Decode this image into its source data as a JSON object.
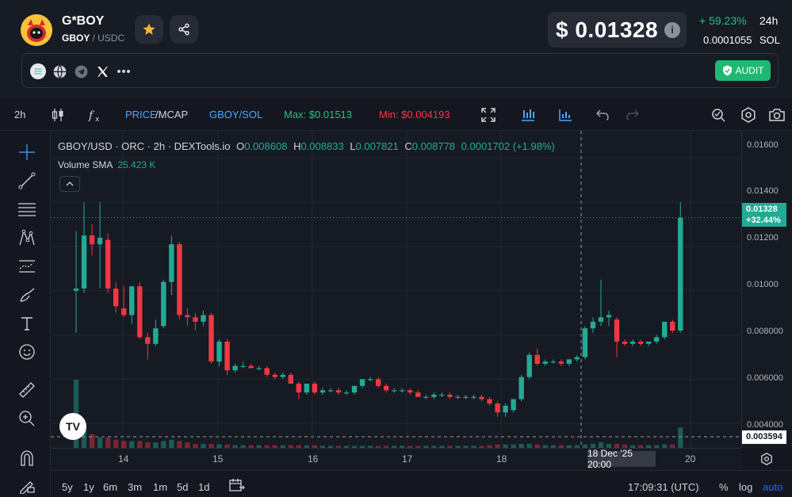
{
  "token": {
    "name": "G*BOY",
    "base": "GBOY",
    "quote": "/ USDC"
  },
  "price": {
    "usd": "$ 0.01328",
    "change": "+ 59.23%",
    "period": "24h",
    "sol_value": "0.0001055",
    "sol_unit": "SOL"
  },
  "audit_label": "AUDIT",
  "toolbar": {
    "interval": "2h",
    "price_label": "PRICE",
    "mcap_label": "/MCAP",
    "pair_label": "GBOY/SOL",
    "max_label": "Max: $0.01513",
    "min_label": "Min: $0.004193"
  },
  "legend": {
    "title": "GBOY/USD · ORC · 2h · DEXTools.io",
    "o_k": "O",
    "o_v": "0.008608",
    "h_k": "H",
    "h_v": "0.008833",
    "l_k": "L",
    "l_v": "0.007821",
    "c_k": "C",
    "c_v": "0.008778",
    "chg_v": "0.0001702 (+1.98%)",
    "volume_label": "Volume SMA",
    "volume_value": "25.423 K"
  },
  "y_axis": {
    "ticks": [
      "0.01600",
      "0.01400",
      "0.01200",
      "0.01000",
      "0.008000",
      "0.006000",
      "0.004000"
    ],
    "price_tag_value": "0.01328",
    "price_tag_change": "+32.44%",
    "crosshair_value": "0.003594"
  },
  "x_axis": {
    "ticks": [
      "14",
      "15",
      "16",
      "17",
      "18",
      "20"
    ],
    "crosshair_label": "18 Dec '25   20:00"
  },
  "bottom": {
    "ranges": [
      "5y",
      "1y",
      "6m",
      "3m",
      "1m",
      "5d",
      "1d"
    ],
    "time": "17:09:31 (UTC)",
    "percent": "%",
    "log": "log",
    "auto": "auto"
  },
  "tv_logo_text": "TV",
  "colors": {
    "up": "#22ab94",
    "down": "#f23645",
    "accent": "#2962ff",
    "audit": "#1fb872"
  },
  "chart_data": {
    "type": "candlestick",
    "title": "GBOY/USD · ORC · 2h · DEXTools.io",
    "ylim": [
      0.0034,
      0.0168
    ],
    "x_ticks": [
      "14",
      "15",
      "16",
      "17",
      "18",
      "20"
    ],
    "candles": [
      {
        "o": 0.01,
        "h": 0.0127,
        "l": 0.0081,
        "c": 0.0101
      },
      {
        "o": 0.0101,
        "h": 0.014,
        "l": 0.0099,
        "c": 0.0125
      },
      {
        "o": 0.0125,
        "h": 0.013,
        "l": 0.0116,
        "c": 0.0121
      },
      {
        "o": 0.0121,
        "h": 0.014,
        "l": 0.0101,
        "c": 0.0124
      },
      {
        "o": 0.0123,
        "h": 0.0126,
        "l": 0.0099,
        "c": 0.0101
      },
      {
        "o": 0.0101,
        "h": 0.0104,
        "l": 0.009,
        "c": 0.0093
      },
      {
        "o": 0.0092,
        "h": 0.0102,
        "l": 0.0088,
        "c": 0.0089
      },
      {
        "o": 0.0089,
        "h": 0.0102,
        "l": 0.0085,
        "c": 0.0102
      },
      {
        "o": 0.0102,
        "h": 0.0104,
        "l": 0.0078,
        "c": 0.0079
      },
      {
        "o": 0.0079,
        "h": 0.0081,
        "l": 0.0069,
        "c": 0.0076
      },
      {
        "o": 0.0076,
        "h": 0.0087,
        "l": 0.0075,
        "c": 0.0083
      },
      {
        "o": 0.0084,
        "h": 0.0105,
        "l": 0.0083,
        "c": 0.0104
      },
      {
        "o": 0.0104,
        "h": 0.0125,
        "l": 0.0098,
        "c": 0.0121
      },
      {
        "o": 0.0121,
        "h": 0.0122,
        "l": 0.0087,
        "c": 0.0089
      },
      {
        "o": 0.0089,
        "h": 0.0092,
        "l": 0.0084,
        "c": 0.0088
      },
      {
        "o": 0.0088,
        "h": 0.009,
        "l": 0.0082,
        "c": 0.0086
      },
      {
        "o": 0.0086,
        "h": 0.0091,
        "l": 0.0084,
        "c": 0.0089
      },
      {
        "o": 0.0089,
        "h": 0.009,
        "l": 0.0067,
        "c": 0.0068
      },
      {
        "o": 0.0068,
        "h": 0.0078,
        "l": 0.0066,
        "c": 0.0077
      },
      {
        "o": 0.0077,
        "h": 0.0078,
        "l": 0.0062,
        "c": 0.0064
      },
      {
        "o": 0.0064,
        "h": 0.0067,
        "l": 0.0063,
        "c": 0.0066
      },
      {
        "o": 0.0066,
        "h": 0.0068,
        "l": 0.0065,
        "c": 0.0066
      },
      {
        "o": 0.0066,
        "h": 0.0067,
        "l": 0.0065,
        "c": 0.0065
      },
      {
        "o": 0.0065,
        "h": 0.0066,
        "l": 0.0064,
        "c": 0.0065
      },
      {
        "o": 0.0065,
        "h": 0.0066,
        "l": 0.0061,
        "c": 0.0062
      },
      {
        "o": 0.0062,
        "h": 0.0063,
        "l": 0.006,
        "c": 0.0061
      },
      {
        "o": 0.0061,
        "h": 0.0063,
        "l": 0.006,
        "c": 0.0062
      },
      {
        "o": 0.0062,
        "h": 0.0063,
        "l": 0.0058,
        "c": 0.0058
      },
      {
        "o": 0.0058,
        "h": 0.0059,
        "l": 0.0051,
        "c": 0.0054
      },
      {
        "o": 0.0054,
        "h": 0.0058,
        "l": 0.0053,
        "c": 0.0058
      },
      {
        "o": 0.0058,
        "h": 0.0059,
        "l": 0.0053,
        "c": 0.0054
      },
      {
        "o": 0.0054,
        "h": 0.0056,
        "l": 0.0053,
        "c": 0.0055
      },
      {
        "o": 0.0055,
        "h": 0.0056,
        "l": 0.0054,
        "c": 0.0055
      },
      {
        "o": 0.0055,
        "h": 0.0056,
        "l": 0.0053,
        "c": 0.0054
      },
      {
        "o": 0.0054,
        "h": 0.0055,
        "l": 0.0053,
        "c": 0.0054
      },
      {
        "o": 0.0054,
        "h": 0.0057,
        "l": 0.0053,
        "c": 0.0057
      },
      {
        "o": 0.0057,
        "h": 0.006,
        "l": 0.0056,
        "c": 0.006
      },
      {
        "o": 0.006,
        "h": 0.0061,
        "l": 0.0059,
        "c": 0.006
      },
      {
        "o": 0.006,
        "h": 0.0061,
        "l": 0.0056,
        "c": 0.0057
      },
      {
        "o": 0.0057,
        "h": 0.0058,
        "l": 0.0054,
        "c": 0.0055
      },
      {
        "o": 0.0055,
        "h": 0.0056,
        "l": 0.0054,
        "c": 0.0055
      },
      {
        "o": 0.0055,
        "h": 0.0056,
        "l": 0.0054,
        "c": 0.0055
      },
      {
        "o": 0.0055,
        "h": 0.0056,
        "l": 0.0053,
        "c": 0.0054
      },
      {
        "o": 0.0054,
        "h": 0.0055,
        "l": 0.0052,
        "c": 0.0052
      },
      {
        "o": 0.0052,
        "h": 0.0053,
        "l": 0.0051,
        "c": 0.0052
      },
      {
        "o": 0.0052,
        "h": 0.0054,
        "l": 0.0051,
        "c": 0.0053
      },
      {
        "o": 0.0053,
        "h": 0.0054,
        "l": 0.0052,
        "c": 0.0053
      },
      {
        "o": 0.0053,
        "h": 0.0054,
        "l": 0.0051,
        "c": 0.0052
      },
      {
        "o": 0.0052,
        "h": 0.0053,
        "l": 0.0051,
        "c": 0.0052
      },
      {
        "o": 0.0052,
        "h": 0.0053,
        "l": 0.0051,
        "c": 0.0052
      },
      {
        "o": 0.0052,
        "h": 0.0053,
        "l": 0.0051,
        "c": 0.0052
      },
      {
        "o": 0.0052,
        "h": 0.0053,
        "l": 0.005,
        "c": 0.0051
      },
      {
        "o": 0.0051,
        "h": 0.0052,
        "l": 0.0048,
        "c": 0.0049
      },
      {
        "o": 0.0049,
        "h": 0.005,
        "l": 0.0043,
        "c": 0.0045
      },
      {
        "o": 0.0045,
        "h": 0.0049,
        "l": 0.0043,
        "c": 0.0048
      },
      {
        "o": 0.0046,
        "h": 0.0051,
        "l": 0.0045,
        "c": 0.0051
      },
      {
        "o": 0.0051,
        "h": 0.0062,
        "l": 0.005,
        "c": 0.0061
      },
      {
        "o": 0.0061,
        "h": 0.0072,
        "l": 0.006,
        "c": 0.0071
      },
      {
        "o": 0.0071,
        "h": 0.0074,
        "l": 0.0066,
        "c": 0.0067
      },
      {
        "o": 0.0067,
        "h": 0.0069,
        "l": 0.0066,
        "c": 0.0068
      },
      {
        "o": 0.0068,
        "h": 0.0069,
        "l": 0.0067,
        "c": 0.0068
      },
      {
        "o": 0.0068,
        "h": 0.0069,
        "l": 0.0066,
        "c": 0.0067
      },
      {
        "o": 0.0067,
        "h": 0.0069,
        "l": 0.0066,
        "c": 0.0069
      },
      {
        "o": 0.0069,
        "h": 0.0071,
        "l": 0.0068,
        "c": 0.007
      },
      {
        "o": 0.007,
        "h": 0.0084,
        "l": 0.0069,
        "c": 0.0083
      },
      {
        "o": 0.0083,
        "h": 0.0088,
        "l": 0.0081,
        "c": 0.0086
      },
      {
        "o": 0.0086,
        "h": 0.0105,
        "l": 0.0084,
        "c": 0.0088
      },
      {
        "o": 0.0088,
        "h": 0.0091,
        "l": 0.0084,
        "c": 0.0089
      },
      {
        "o": 0.0087,
        "h": 0.0088,
        "l": 0.007,
        "c": 0.0077
      },
      {
        "o": 0.0077,
        "h": 0.0078,
        "l": 0.0075,
        "c": 0.0076
      },
      {
        "o": 0.0076,
        "h": 0.0078,
        "l": 0.0075,
        "c": 0.0077
      },
      {
        "o": 0.0077,
        "h": 0.0078,
        "l": 0.0075,
        "c": 0.0076
      },
      {
        "o": 0.0076,
        "h": 0.0077,
        "l": 0.0075,
        "c": 0.0077
      },
      {
        "o": 0.0077,
        "h": 0.008,
        "l": 0.0076,
        "c": 0.0079
      },
      {
        "o": 0.0079,
        "h": 0.0086,
        "l": 0.0078,
        "c": 0.0086
      },
      {
        "o": 0.0086,
        "h": 0.0087,
        "l": 0.0081,
        "c": 0.0082
      },
      {
        "o": 0.0082,
        "h": 0.014,
        "l": 0.0081,
        "c": 0.0133
      }
    ],
    "volume": [
      1.0,
      0.3,
      0.2,
      0.15,
      0.15,
      0.12,
      0.1,
      0.1,
      0.1,
      0.08,
      0.08,
      0.1,
      0.12,
      0.1,
      0.08,
      0.06,
      0.06,
      0.06,
      0.05,
      0.05,
      0.04,
      0.04,
      0.04,
      0.04,
      0.04,
      0.04,
      0.04,
      0.04,
      0.04,
      0.04,
      0.04,
      0.03,
      0.03,
      0.03,
      0.03,
      0.03,
      0.03,
      0.03,
      0.03,
      0.03,
      0.03,
      0.03,
      0.03,
      0.03,
      0.03,
      0.03,
      0.03,
      0.03,
      0.03,
      0.03,
      0.03,
      0.03,
      0.04,
      0.05,
      0.05,
      0.05,
      0.06,
      0.06,
      0.05,
      0.04,
      0.04,
      0.04,
      0.04,
      0.04,
      0.05,
      0.06,
      0.08,
      0.06,
      0.06,
      0.05,
      0.04,
      0.04,
      0.04,
      0.04,
      0.05,
      0.05,
      0.3
    ]
  }
}
